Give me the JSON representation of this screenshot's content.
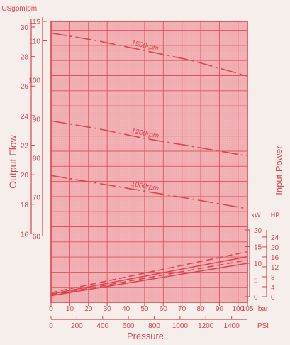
{
  "chart_data": {
    "type": "line",
    "colors": {
      "accent": "#d8454f",
      "plot_bg": "#f2b6b9",
      "grid": "#e0525e",
      "paper": "#f6eeeb"
    },
    "title": "",
    "xlabel": "Pressure",
    "ylabel": "Output Flow",
    "y2label": "Input Power",
    "grid": true,
    "axes": {
      "bar": {
        "unit": "bar",
        "ticks": [
          0,
          10,
          20,
          30,
          40,
          50,
          60,
          70,
          80,
          90,
          100,
          105
        ],
        "range": [
          0,
          105
        ]
      },
      "psi": {
        "unit": "PSI",
        "ticks": [
          0,
          200,
          400,
          600,
          800,
          1000,
          1200,
          1400
        ]
      },
      "lpm": {
        "unit": "lpm",
        "ticks": [
          60,
          70,
          80,
          90,
          100,
          110,
          115
        ],
        "range": [
          43,
          115
        ]
      },
      "usgpm": {
        "unit": "USgpm",
        "ticks": [
          16,
          18,
          20,
          22,
          24,
          26,
          28,
          30
        ]
      },
      "kw": {
        "unit": "kW",
        "ticks": [
          0,
          5,
          10,
          15,
          20
        ],
        "range": [
          0,
          20
        ]
      },
      "hp": {
        "unit": "HP",
        "ticks": [
          0,
          4,
          8,
          12,
          16,
          20,
          24
        ]
      }
    },
    "flow_series": [
      {
        "name": "1500rpm",
        "x": [
          0,
          25,
          50,
          75,
          105
        ],
        "y": [
          112,
          110,
          107.5,
          105,
          101
        ],
        "style": "dashdot"
      },
      {
        "name": "1200rpm",
        "x": [
          0,
          25,
          50,
          75,
          105
        ],
        "y": [
          89.5,
          87.5,
          85,
          83,
          80.5
        ],
        "style": "dashdot"
      },
      {
        "name": "1000rpm",
        "x": [
          0,
          25,
          50,
          75,
          105
        ],
        "y": [
          75.5,
          73.5,
          71.5,
          69.5,
          67
        ],
        "style": "dashdot"
      }
    ],
    "power_series": [
      {
        "x": [
          0,
          105
        ],
        "y": [
          1.2,
          13.5
        ],
        "style": "dash"
      },
      {
        "x": [
          0,
          105
        ],
        "y": [
          0.8,
          12
        ],
        "style": "solid"
      },
      {
        "x": [
          0,
          105
        ],
        "y": [
          0.5,
          11
        ],
        "style": "dash"
      },
      {
        "x": [
          0,
          105
        ],
        "y": [
          0.3,
          10
        ],
        "style": "solid"
      }
    ]
  }
}
